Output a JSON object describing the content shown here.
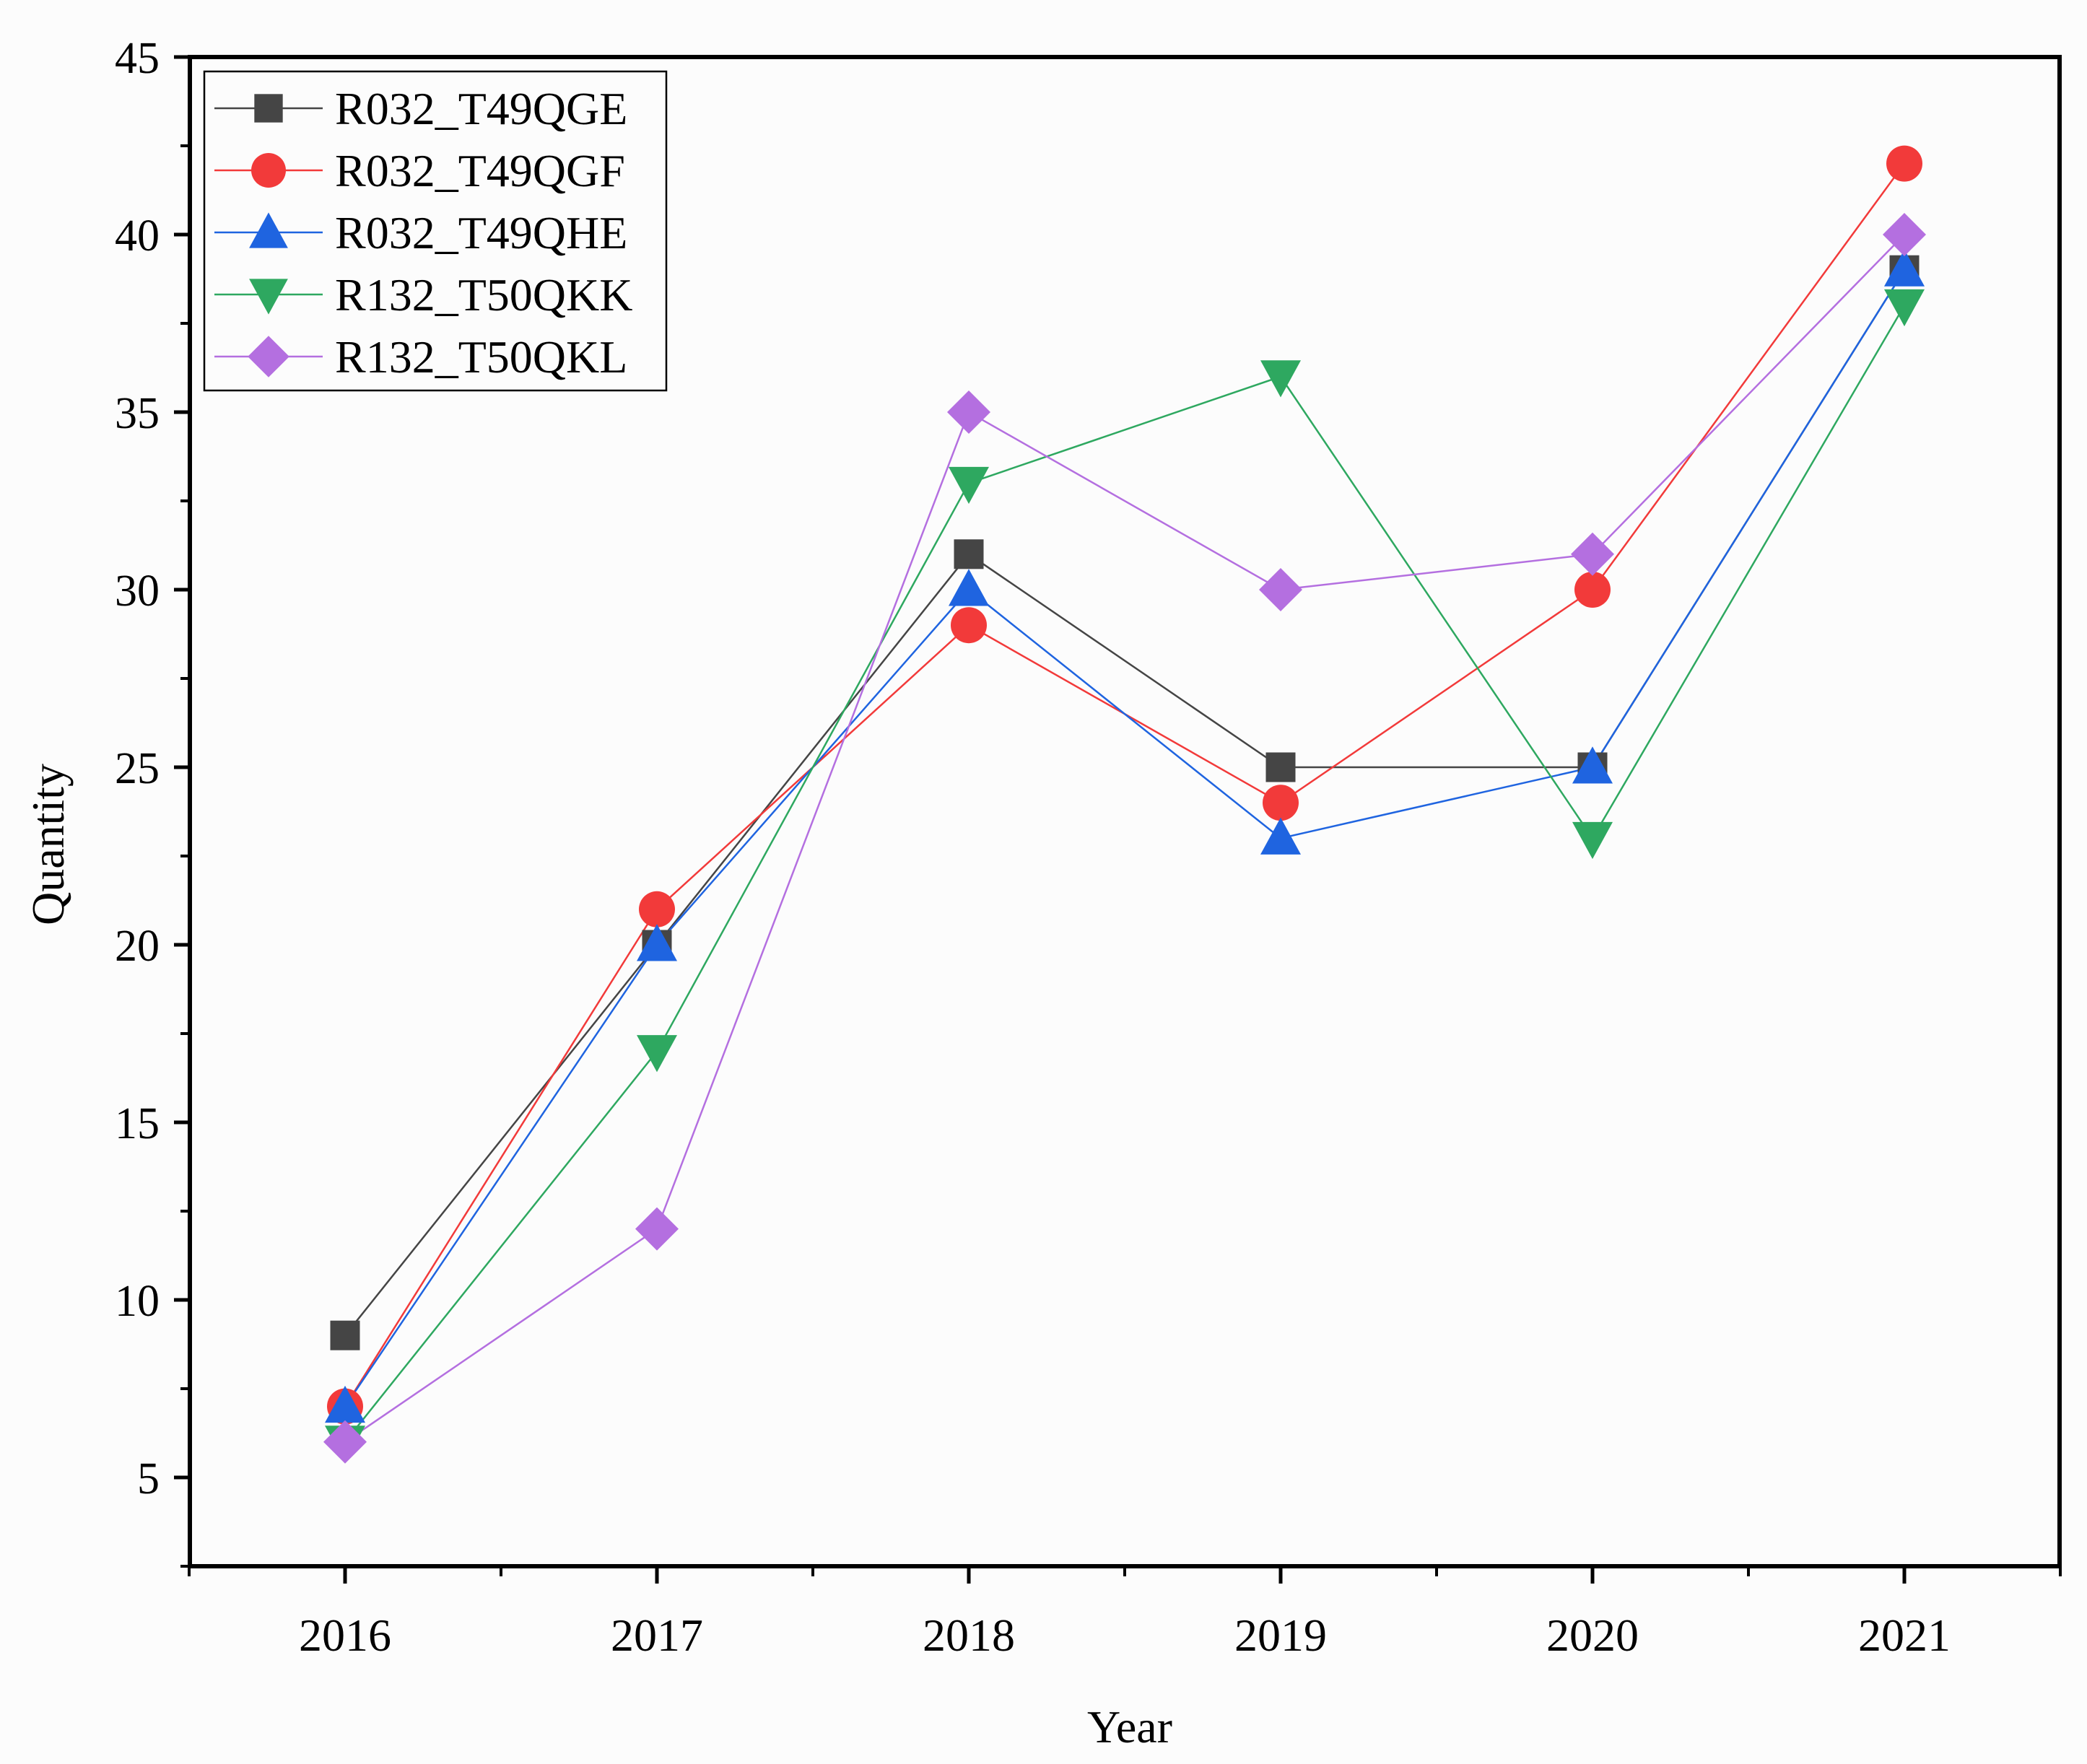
{
  "chart_data": {
    "type": "line",
    "title": "",
    "xlabel": "Year",
    "ylabel": "Quantity",
    "categories": [
      "2016",
      "2017",
      "2018",
      "2019",
      "2020",
      "2021"
    ],
    "ylim": [
      2.5,
      45
    ],
    "yticks": [
      5,
      10,
      15,
      20,
      25,
      30,
      35,
      40,
      45
    ],
    "legend_position": "top-left",
    "series": [
      {
        "name": "R032_T49QGE",
        "marker": "square",
        "color": "#454545",
        "values": [
          9,
          20,
          31,
          25,
          25,
          39
        ]
      },
      {
        "name": "R032_T49QGF",
        "marker": "circle",
        "color": "#f23a3a",
        "values": [
          7,
          21,
          29,
          24,
          30,
          42
        ]
      },
      {
        "name": "R032_T49QHE",
        "marker": "triangle-up",
        "color": "#1f64e0",
        "values": [
          7,
          20,
          30,
          23,
          25,
          39
        ]
      },
      {
        "name": "R132_T50QKK",
        "marker": "triangle-down",
        "color": "#2ea860",
        "values": [
          6,
          17,
          33,
          36,
          23,
          38
        ]
      },
      {
        "name": "R132_T50QKL",
        "marker": "diamond",
        "color": "#b46fe0",
        "values": [
          6,
          12,
          35,
          30,
          31,
          40
        ]
      }
    ]
  }
}
